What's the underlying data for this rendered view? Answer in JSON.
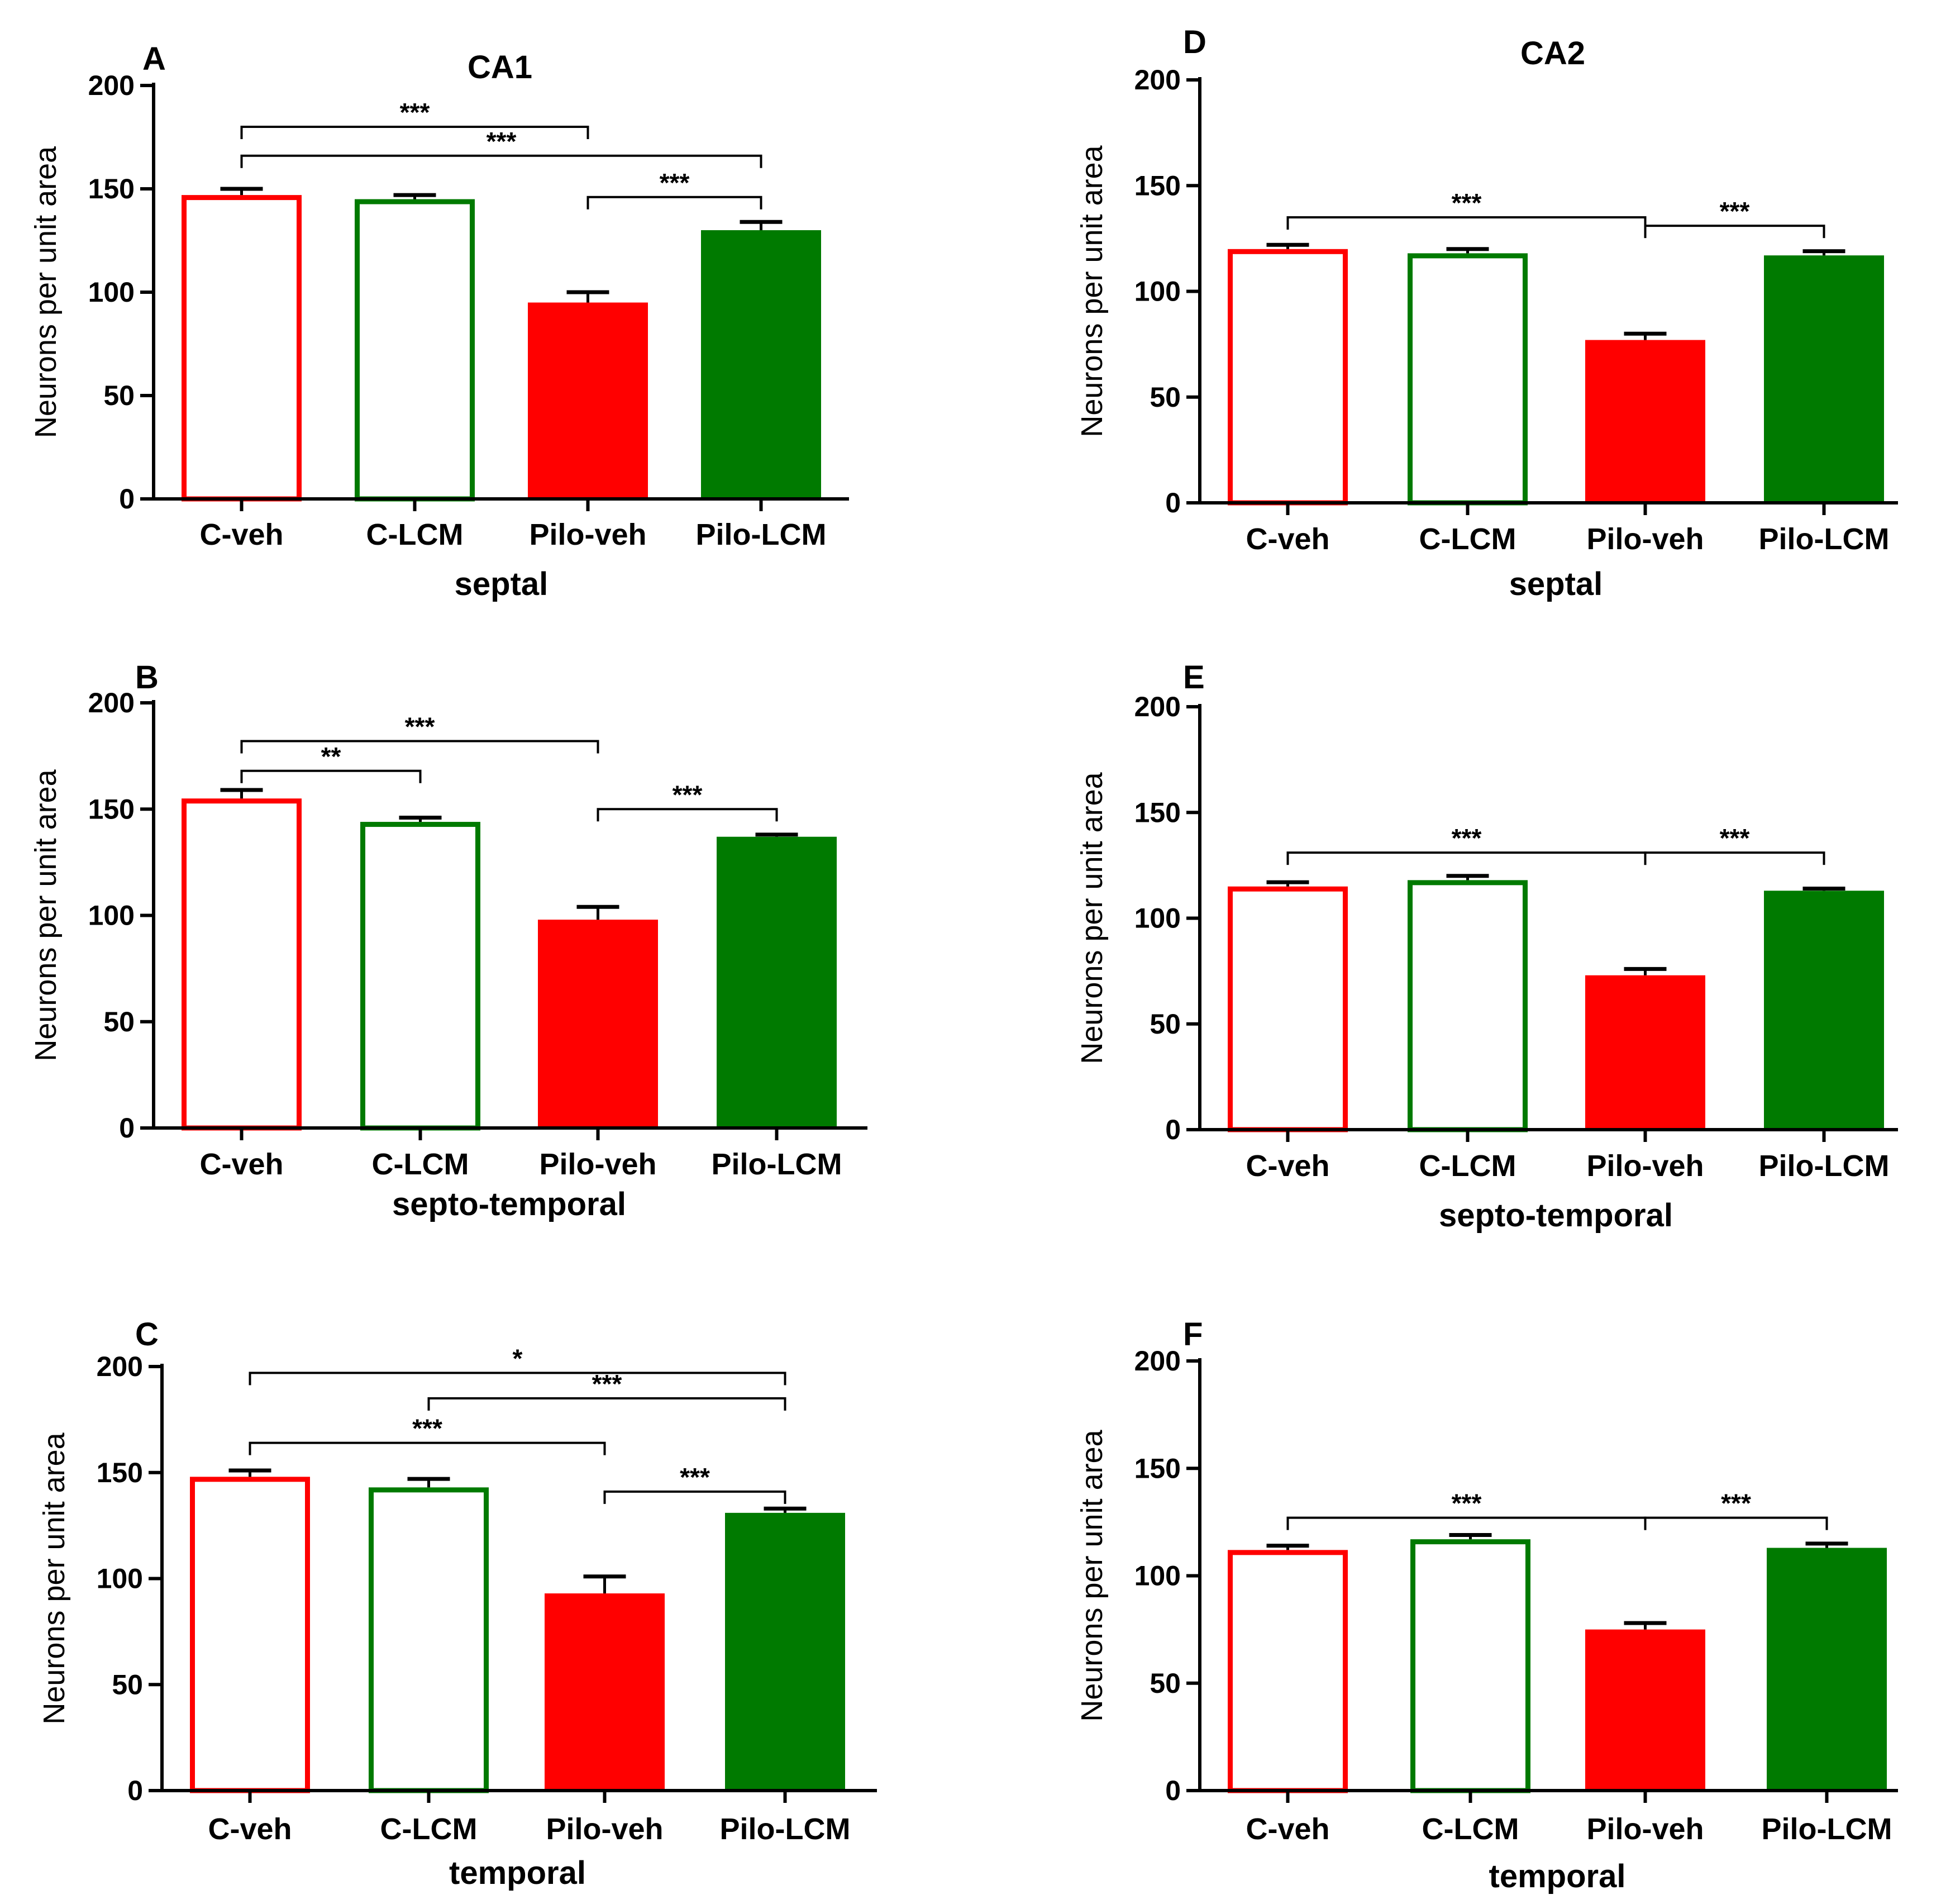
{
  "figure": {
    "colors": {
      "red": "#ff0000",
      "green": "#007a00",
      "axis": "#000000"
    }
  },
  "chart_data": [
    {
      "panel": "A",
      "title": "CA1",
      "type": "bar",
      "categories": [
        "C-veh",
        "C-LCM",
        "Pilo-veh",
        "Pilo-LCM"
      ],
      "values": [
        147,
        145,
        95,
        130
      ],
      "errors": [
        3,
        2,
        5,
        4
      ],
      "fill": [
        "none",
        "none",
        "solid",
        "solid"
      ],
      "color": [
        "red",
        "green",
        "red",
        "green"
      ],
      "xlabel": "septal",
      "ylabel": "Neurons per unit area",
      "ylim": [
        0,
        200
      ],
      "yticks": [
        0,
        50,
        100,
        150,
        200
      ],
      "significance": [
        {
          "from": 0,
          "to": 2,
          "y": 180,
          "label": "***"
        },
        {
          "from": 0,
          "to": 3,
          "y": 166,
          "label": "***"
        },
        {
          "from": 2,
          "to": 3,
          "y": 146,
          "label": "***"
        }
      ]
    },
    {
      "panel": "D",
      "title": "CA2",
      "type": "bar",
      "categories": [
        "C-veh",
        "C-LCM",
        "Pilo-veh",
        "Pilo-LCM"
      ],
      "values": [
        120,
        118,
        77,
        117
      ],
      "errors": [
        2,
        2,
        3,
        2
      ],
      "fill": [
        "none",
        "none",
        "solid",
        "solid"
      ],
      "color": [
        "red",
        "green",
        "red",
        "green"
      ],
      "xlabel": "septal",
      "ylabel": "Neurons per unit area",
      "ylim": [
        0,
        200
      ],
      "yticks": [
        0,
        50,
        100,
        150,
        200
      ],
      "significance": [
        {
          "from": 0,
          "to": 2,
          "y": 135,
          "label": "***"
        },
        {
          "from": 2,
          "to": 3,
          "y": 131,
          "label": "***"
        }
      ]
    },
    {
      "panel": "B",
      "title": "",
      "type": "bar",
      "categories": [
        "C-veh",
        "C-LCM",
        "Pilo-veh",
        "Pilo-LCM"
      ],
      "values": [
        155,
        144,
        98,
        137
      ],
      "errors": [
        4,
        2,
        6,
        1
      ],
      "fill": [
        "none",
        "none",
        "solid",
        "solid"
      ],
      "color": [
        "red",
        "green",
        "red",
        "green"
      ],
      "xlabel": "septo-temporal",
      "ylabel": "Neurons per unit area",
      "ylim": [
        0,
        200
      ],
      "yticks": [
        0,
        50,
        100,
        150,
        200
      ],
      "significance": [
        {
          "from": 0,
          "to": 1,
          "y": 168,
          "label": "**"
        },
        {
          "from": 0,
          "to": 2,
          "y": 182,
          "label": "***"
        },
        {
          "from": 2,
          "to": 3,
          "y": 150,
          "label": "***"
        }
      ]
    },
    {
      "panel": "E",
      "title": "",
      "type": "bar",
      "categories": [
        "C-veh",
        "C-LCM",
        "Pilo-veh",
        "Pilo-LCM"
      ],
      "values": [
        115,
        118,
        73,
        113
      ],
      "errors": [
        2,
        2,
        3,
        1
      ],
      "fill": [
        "none",
        "none",
        "solid",
        "solid"
      ],
      "color": [
        "red",
        "green",
        "red",
        "green"
      ],
      "xlabel": "septo-temporal",
      "ylabel": "Neurons per unit area",
      "ylim": [
        0,
        200
      ],
      "yticks": [
        0,
        50,
        100,
        150,
        200
      ],
      "significance": [
        {
          "from": 0,
          "to": 2,
          "y": 131,
          "label": "***"
        },
        {
          "from": 2,
          "to": 3,
          "y": 131,
          "label": "***"
        }
      ]
    },
    {
      "panel": "C",
      "title": "",
      "type": "bar",
      "categories": [
        "C-veh",
        "C-LCM",
        "Pilo-veh",
        "Pilo-LCM"
      ],
      "values": [
        148,
        143,
        93,
        131
      ],
      "errors": [
        3,
        4,
        8,
        2
      ],
      "fill": [
        "none",
        "none",
        "solid",
        "solid"
      ],
      "color": [
        "red",
        "green",
        "red",
        "green"
      ],
      "xlabel": "temporal",
      "ylabel": "Neurons per unit area",
      "ylim": [
        0,
        200
      ],
      "yticks": [
        0,
        50,
        100,
        150,
        200
      ],
      "significance": [
        {
          "from": 0,
          "to": 3,
          "y": 197,
          "label": "*"
        },
        {
          "from": 1,
          "to": 3,
          "y": 185,
          "label": "***"
        },
        {
          "from": 0,
          "to": 2,
          "y": 164,
          "label": "***"
        },
        {
          "from": 2,
          "to": 3,
          "y": 141,
          "label": "***"
        }
      ]
    },
    {
      "panel": "F",
      "title": "",
      "type": "bar",
      "categories": [
        "C-veh",
        "C-LCM",
        "Pilo-veh",
        "Pilo-LCM"
      ],
      "values": [
        112,
        117,
        75,
        113
      ],
      "errors": [
        2,
        2,
        3,
        2
      ],
      "fill": [
        "none",
        "none",
        "solid",
        "solid"
      ],
      "color": [
        "red",
        "green",
        "red",
        "green"
      ],
      "xlabel": "temporal",
      "ylabel": "Neurons per unit area",
      "ylim": [
        0,
        200
      ],
      "yticks": [
        0,
        50,
        100,
        150,
        200
      ],
      "significance": [
        {
          "from": 0,
          "to": 2,
          "y": 127,
          "label": "***"
        },
        {
          "from": 2,
          "to": 3,
          "y": 127,
          "label": "***"
        }
      ]
    }
  ]
}
